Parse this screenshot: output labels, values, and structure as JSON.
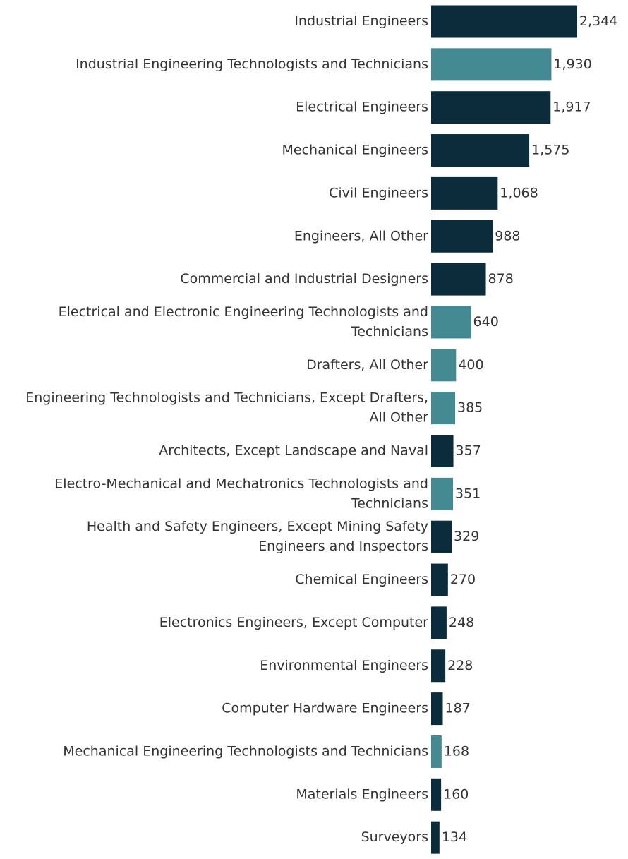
{
  "chart_data": {
    "type": "bar",
    "orientation": "horizontal",
    "title": "",
    "xlabel": "",
    "ylabel": "",
    "grid": false,
    "xlim": [
      0,
      2344
    ],
    "colors": {
      "dark": "#0b2c3a",
      "light": "#448a93"
    },
    "categories": [
      "Industrial Engineers",
      "Industrial Engineering Technologists and Technicians",
      "Electrical Engineers",
      "Mechanical Engineers",
      "Civil Engineers",
      "Engineers, All Other",
      "Commercial and Industrial Designers",
      "Electrical and Electronic Engineering Technologists and Technicians",
      "Drafters, All Other",
      "Engineering Technologists and Technicians, Except Drafters, All Other",
      "Architects, Except Landscape and Naval",
      "Electro-Mechanical and Mechatronics Technologists and Technicians",
      "Health and Safety Engineers, Except Mining Safety Engineers and Inspectors",
      "Chemical Engineers",
      "Electronics Engineers, Except Computer",
      "Environmental Engineers",
      "Computer Hardware Engineers",
      "Mechanical Engineering Technologists and Technicians",
      "Materials Engineers",
      "Surveyors"
    ],
    "label_lines": [
      [
        "Industrial Engineers"
      ],
      [
        "Industrial Engineering Technologists and Technicians"
      ],
      [
        "Electrical Engineers"
      ],
      [
        "Mechanical Engineers"
      ],
      [
        "Civil Engineers"
      ],
      [
        "Engineers, All Other"
      ],
      [
        "Commercial and Industrial Designers"
      ],
      [
        "Electrical and Electronic Engineering Technologists and",
        "Technicians"
      ],
      [
        "Drafters, All Other"
      ],
      [
        "Engineering Technologists and Technicians, Except Drafters,",
        "All Other"
      ],
      [
        "Architects, Except Landscape and Naval"
      ],
      [
        "Electro-Mechanical and Mechatronics Technologists and",
        "Technicians"
      ],
      [
        "Health and Safety Engineers, Except Mining Safety",
        "Engineers and Inspectors"
      ],
      [
        "Chemical Engineers"
      ],
      [
        "Electronics Engineers, Except Computer"
      ],
      [
        "Environmental Engineers"
      ],
      [
        "Computer Hardware Engineers"
      ],
      [
        "Mechanical Engineering Technologists and Technicians"
      ],
      [
        "Materials Engineers"
      ],
      [
        "Surveyors"
      ]
    ],
    "values": [
      2344,
      1930,
      1917,
      1575,
      1068,
      988,
      878,
      640,
      400,
      385,
      357,
      351,
      329,
      270,
      248,
      228,
      187,
      168,
      160,
      134
    ],
    "value_labels": [
      "2,344",
      "1,930",
      "1,917",
      "1,575",
      "1,068",
      "988",
      "878",
      "640",
      "400",
      "385",
      "357",
      "351",
      "329",
      "270",
      "248",
      "228",
      "187",
      "168",
      "160",
      "134"
    ],
    "group": [
      "dark",
      "light",
      "dark",
      "dark",
      "dark",
      "dark",
      "dark",
      "light",
      "light",
      "light",
      "dark",
      "light",
      "dark",
      "dark",
      "dark",
      "dark",
      "dark",
      "light",
      "dark",
      "dark"
    ]
  }
}
